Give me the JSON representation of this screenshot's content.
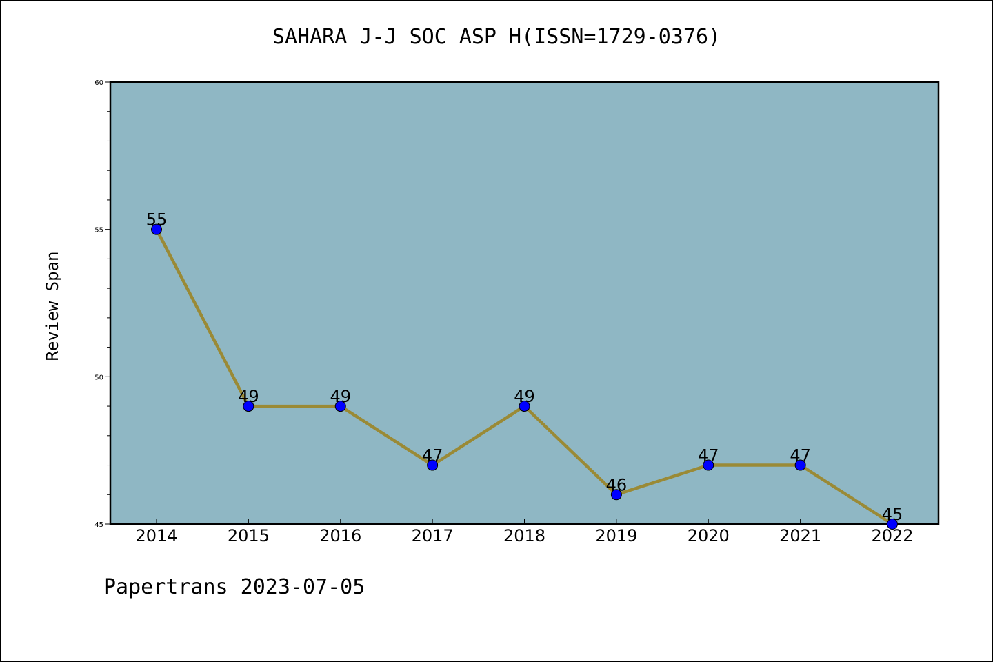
{
  "chart_data": {
    "type": "line",
    "title": "SAHARA J-J SOC ASP H(ISSN=1729-0376)",
    "xlabel": "",
    "ylabel": "Review Span",
    "x": [
      "2014",
      "2015",
      "2016",
      "2017",
      "2018",
      "2019",
      "2020",
      "2021",
      "2022"
    ],
    "series": [
      {
        "values": [
          55,
          49,
          49,
          47,
          49,
          46,
          47,
          47,
          45
        ]
      }
    ],
    "data_labels": [
      "55",
      "49",
      "49",
      "47",
      "49",
      "46",
      "47",
      "47",
      "45"
    ],
    "ylim": [
      45,
      60
    ],
    "yticks": [
      "45",
      "50",
      "55",
      "60"
    ],
    "grid": false,
    "legend": "none",
    "colors": {
      "plot_background": "#8fb7c4",
      "line": "#9a8a36",
      "marker": "#0000ff",
      "axes": "#000000"
    }
  },
  "footer": {
    "text": "Papertrans 2023-07-05"
  }
}
